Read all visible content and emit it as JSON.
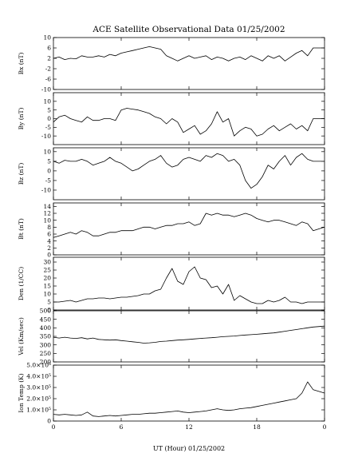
{
  "chart_data": {
    "type": "line",
    "title": "ACE Satellite Observational Data   01/25/2002",
    "xlabel": "UT (Hour)   01/25/2002",
    "x_ticks": [
      "0",
      "6",
      "12",
      "18",
      "0"
    ],
    "xlim": [
      0,
      24
    ],
    "grid": false,
    "panels": [
      {
        "name": "Bx",
        "ylabel": "Bx (nT)",
        "ylim": [
          -10,
          10
        ],
        "y_ticks": [
          "10",
          "6",
          "2",
          "-2",
          "-6",
          "-10"
        ],
        "y_tick_values": [
          10,
          6,
          2,
          -2,
          -6,
          -10
        ],
        "series": [
          {
            "x": [
              0,
              0.5,
              1,
              1.5,
              2,
              2.5,
              3,
              3.5,
              4,
              4.5,
              5,
              5.5,
              6,
              6.5,
              7,
              7.5,
              8,
              8.5,
              9,
              9.5,
              10,
              10.5,
              11,
              11.5,
              12,
              12.5,
              13,
              13.5,
              14,
              14.5,
              15,
              15.5,
              16,
              16.5,
              17,
              17.5,
              18,
              18.5,
              19,
              19.5,
              20,
              20.5,
              21,
              21.5,
              22,
              22.5,
              23,
              24
            ],
            "y": [
              2,
              2.5,
              1.5,
              2,
              1.8,
              3,
              2.5,
              2.5,
              3,
              2.5,
              3.5,
              3,
              4,
              4.5,
              5,
              5.5,
              6,
              6.5,
              6,
              5.5,
              3,
              2,
              1,
              2,
              3,
              2,
              2.5,
              3,
              1.5,
              2.5,
              2,
              1,
              2,
              2.5,
              1.5,
              3,
              2,
              1,
              3,
              2,
              3,
              1,
              2.5,
              4,
              5,
              3,
              6,
              6
            ]
          }
        ]
      },
      {
        "name": "By",
        "ylabel": "By (nT)",
        "ylim": [
          -15,
          15
        ],
        "y_ticks": [
          "10",
          "5",
          "0",
          "-5",
          "-10"
        ],
        "y_tick_values": [
          10,
          5,
          0,
          -5,
          -10
        ],
        "series": [
          {
            "x": [
              0,
              0.5,
              1,
              1.5,
              2,
              2.5,
              3,
              3.5,
              4,
              4.5,
              5,
              5.5,
              6,
              6.5,
              7,
              7.5,
              8,
              8.5,
              9,
              9.5,
              10,
              10.5,
              11,
              11.5,
              12,
              12.5,
              13,
              13.5,
              14,
              14.5,
              15,
              15.5,
              16,
              16.5,
              17,
              17.5,
              18,
              18.5,
              19,
              19.5,
              20,
              20.5,
              21,
              21.5,
              22,
              22.5,
              23,
              24
            ],
            "y": [
              -2,
              1,
              2,
              0,
              -1,
              -2,
              1,
              -1,
              -1,
              0,
              0,
              -1,
              5,
              6,
              5.5,
              5,
              4,
              3,
              1,
              0,
              -3,
              0,
              -2,
              -8,
              -6,
              -4,
              -9,
              -7,
              -3,
              4,
              -2,
              0,
              -10,
              -7,
              -5,
              -6,
              -10,
              -9,
              -6,
              -4,
              -7,
              -5,
              -3,
              -6,
              -4,
              -7,
              0,
              0
            ]
          }
        ]
      },
      {
        "name": "Bz",
        "ylabel": "Bz (nT)",
        "ylim": [
          -15,
          12
        ],
        "y_ticks": [
          "10",
          "5",
          "0",
          "-5",
          "-10"
        ],
        "y_tick_values": [
          10,
          5,
          0,
          -5,
          -10
        ],
        "series": [
          {
            "x": [
              0,
              0.5,
              1,
              1.5,
              2,
              2.5,
              3,
              3.5,
              4,
              4.5,
              5,
              5.5,
              6,
              6.5,
              7,
              7.5,
              8,
              8.5,
              9,
              9.5,
              10,
              10.5,
              11,
              11.5,
              12,
              12.5,
              13,
              13.5,
              14,
              14.5,
              15,
              15.5,
              16,
              16.5,
              17,
              17.5,
              18,
              18.5,
              19,
              19.5,
              20,
              20.5,
              21,
              21.5,
              22,
              22.5,
              23,
              24
            ],
            "y": [
              5,
              4,
              5.5,
              5,
              5,
              6,
              5,
              3,
              4,
              5,
              7,
              5,
              4,
              2,
              0,
              1,
              3,
              5,
              6,
              8,
              4,
              2,
              3,
              6,
              7,
              6,
              5,
              8,
              7,
              9,
              8,
              5,
              6,
              3,
              -5,
              -9,
              -7,
              -3,
              3,
              1,
              5,
              8,
              3,
              7,
              9,
              6,
              5,
              5
            ]
          }
        ]
      },
      {
        "name": "Bt",
        "ylabel": "Bt (nT)",
        "ylim": [
          0,
          15
        ],
        "y_ticks": [
          "14",
          "12",
          "10",
          "8",
          "6",
          "4",
          "2",
          "0"
        ],
        "y_tick_values": [
          14,
          12,
          10,
          8,
          6,
          4,
          2,
          0
        ],
        "series": [
          {
            "x": [
              0,
              0.5,
              1,
              1.5,
              2,
              2.5,
              3,
              3.5,
              4,
              4.5,
              5,
              5.5,
              6,
              6.5,
              7,
              7.5,
              8,
              8.5,
              9,
              9.5,
              10,
              10.5,
              11,
              11.5,
              12,
              12.5,
              13,
              13.5,
              14,
              14.5,
              15,
              15.5,
              16,
              16.5,
              17,
              17.5,
              18,
              18.5,
              19,
              19.5,
              20,
              20.5,
              21,
              21.5,
              22,
              22.5,
              23,
              24
            ],
            "y": [
              5,
              5.5,
              6,
              6.5,
              6,
              7,
              6.5,
              5.5,
              5.5,
              6,
              6.5,
              6.5,
              7,
              7,
              7,
              7.5,
              8,
              8,
              7.5,
              8,
              8.5,
              8.5,
              9,
              9,
              9.5,
              8.5,
              9,
              12,
              11.5,
              12,
              11.5,
              11.5,
              11,
              11.5,
              12,
              11.5,
              10.5,
              10,
              9.5,
              10,
              10,
              9.5,
              9,
              8.5,
              9.5,
              9,
              7,
              8
            ]
          }
        ]
      },
      {
        "name": "Den",
        "ylabel": "Den (1/CC)",
        "ylim": [
          0,
          33
        ],
        "y_ticks": [
          "30",
          "25",
          "20",
          "15",
          "10",
          "5",
          "0"
        ],
        "y_tick_values": [
          30,
          25,
          20,
          15,
          10,
          5,
          0
        ],
        "series": [
          {
            "x": [
              0,
              0.5,
              1,
              1.5,
              2,
              2.5,
              3,
              3.5,
              4,
              4.5,
              5,
              5.5,
              6,
              6.5,
              7,
              7.5,
              8,
              8.5,
              9,
              9.5,
              10,
              10.5,
              11,
              11.5,
              12,
              12.5,
              13,
              13.5,
              14,
              14.5,
              15,
              15.5,
              16,
              16.5,
              17,
              17.5,
              18,
              18.5,
              19,
              19.5,
              20,
              20.5,
              21,
              21.5,
              22,
              22.5,
              23,
              24
            ],
            "y": [
              5,
              5,
              5.5,
              6,
              5,
              6,
              7,
              7,
              7.5,
              7.5,
              7,
              7.5,
              8,
              8,
              8.5,
              9,
              10,
              10,
              12,
              13,
              20,
              26,
              18,
              16,
              24,
              27,
              20,
              19,
              14,
              15,
              10,
              16,
              6,
              9,
              7,
              5,
              4,
              4,
              6,
              5,
              6,
              8,
              5,
              5,
              4,
              5,
              5,
              5
            ]
          }
        ]
      },
      {
        "name": "Vel",
        "ylabel": "Vel (Km/sec)",
        "ylim": [
          200,
          500
        ],
        "y_ticks": [
          "500",
          "450",
          "400",
          "350",
          "300",
          "250",
          "200"
        ],
        "y_tick_values": [
          500,
          450,
          400,
          350,
          300,
          250,
          200
        ],
        "series": [
          {
            "x": [
              0,
              0.5,
              1,
              1.5,
              2,
              2.5,
              3,
              3.5,
              4,
              4.5,
              5,
              5.5,
              6,
              6.5,
              7,
              7.5,
              8,
              8.5,
              9,
              9.5,
              10,
              10.5,
              11,
              11.5,
              12,
              12.5,
              13,
              13.5,
              14,
              14.5,
              15,
              15.5,
              16,
              16.5,
              17,
              17.5,
              18,
              18.5,
              19,
              19.5,
              20,
              20.5,
              21,
              21.5,
              22,
              22.5,
              23,
              24
            ],
            "y": [
              345,
              340,
              345,
              340,
              338,
              342,
              335,
              340,
              332,
              330,
              328,
              330,
              325,
              322,
              318,
              315,
              310,
              312,
              315,
              320,
              322,
              325,
              328,
              330,
              332,
              335,
              338,
              340,
              342,
              345,
              348,
              350,
              352,
              355,
              358,
              360,
              362,
              365,
              368,
              370,
              375,
              380,
              385,
              390,
              395,
              400,
              405,
              410
            ]
          }
        ]
      },
      {
        "name": "Ion Temp",
        "ylabel": "Ion Temp (K)",
        "ylim": [
          0,
          500000
        ],
        "y_ticks": [
          "5.0×10⁵",
          "4.0×10⁵",
          "3.0×10⁵",
          "2.0×10⁵",
          "1.0×10⁵",
          "0"
        ],
        "y_tick_values": [
          500000,
          400000,
          300000,
          200000,
          100000,
          0
        ],
        "series": [
          {
            "x": [
              0,
              0.5,
              1,
              1.5,
              2,
              2.5,
              3,
              3.5,
              4,
              4.5,
              5,
              5.5,
              6,
              6.5,
              7,
              7.5,
              8,
              8.5,
              9,
              9.5,
              10,
              10.5,
              11,
              11.5,
              12,
              12.5,
              13,
              13.5,
              14,
              14.5,
              15,
              15.5,
              16,
              16.5,
              17,
              17.5,
              18,
              18.5,
              19,
              19.5,
              20,
              20.5,
              21,
              21.5,
              22,
              22.5,
              23,
              24
            ],
            "y": [
              60000,
              55000,
              60000,
              55000,
              50000,
              55000,
              80000,
              45000,
              40000,
              45000,
              50000,
              45000,
              50000,
              55000,
              60000,
              60000,
              65000,
              70000,
              70000,
              75000,
              80000,
              85000,
              90000,
              80000,
              75000,
              80000,
              85000,
              90000,
              100000,
              110000,
              100000,
              95000,
              100000,
              110000,
              115000,
              120000,
              130000,
              140000,
              150000,
              160000,
              170000,
              180000,
              190000,
              200000,
              250000,
              350000,
              280000,
              250000
            ]
          }
        ]
      }
    ]
  }
}
